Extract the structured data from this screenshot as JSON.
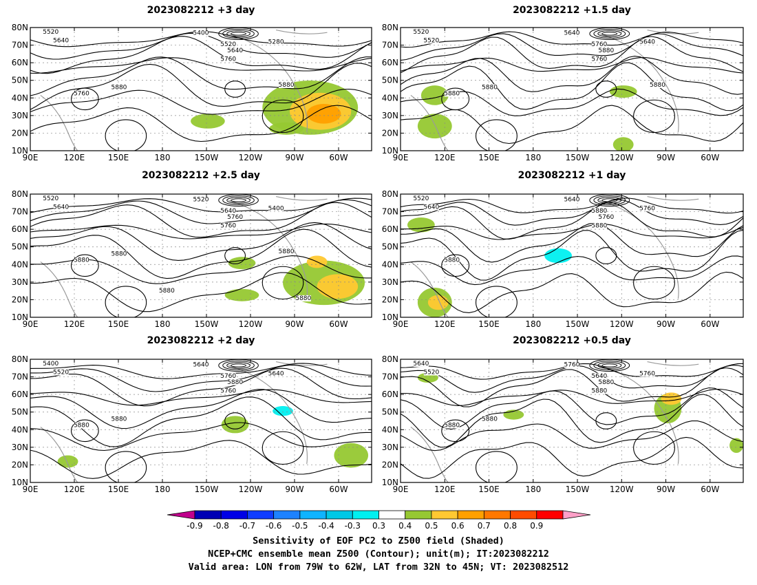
{
  "panels": [
    {
      "title": "2023082212 +3 day",
      "contour_labels": [
        "5520",
        "5640",
        "5400",
        "5280",
        "5520",
        "5640",
        "5760",
        "5760",
        "5880",
        "5880"
      ]
    },
    {
      "title": "2023082212 +1.5 day",
      "contour_labels": [
        "5520",
        "5520",
        "5640",
        "5640",
        "5760",
        "5880",
        "5760",
        "5880",
        "5880",
        "5880"
      ]
    },
    {
      "title": "2023082212 +2.5 day",
      "contour_labels": [
        "5520",
        "5640",
        "5520",
        "5400",
        "5640",
        "5760",
        "5760",
        "5880",
        "5880",
        "5880",
        "5880",
        "5880"
      ]
    },
    {
      "title": "2023082212 +1 day",
      "contour_labels": [
        "5520",
        "5640",
        "5640",
        "5760",
        "5880",
        "5760",
        "5880",
        "5880"
      ]
    },
    {
      "title": "2023082212 +2 day",
      "contour_labels": [
        "5400",
        "5520",
        "5640",
        "5640",
        "5760",
        "5880",
        "5760",
        "5880",
        "5880"
      ]
    },
    {
      "title": "2023082212 +0.5 day",
      "contour_labels": [
        "5640",
        "5520",
        "5760",
        "5760",
        "5640",
        "5880",
        "5880",
        "5880",
        "5880"
      ]
    }
  ],
  "axes": {
    "lat_labels": [
      "80N",
      "70N",
      "60N",
      "50N",
      "40N",
      "30N",
      "20N",
      "10N"
    ],
    "lon_labels": [
      "90E",
      "120E",
      "150E",
      "180",
      "150W",
      "120W",
      "90W",
      "60W"
    ]
  },
  "colorbar": {
    "labels": [
      "-0.9",
      "-0.8",
      "-0.7",
      "-0.6",
      "-0.5",
      "-0.4",
      "-0.3",
      "0.3",
      "0.4",
      "0.5",
      "0.6",
      "0.7",
      "0.8",
      "0.9"
    ],
    "colors": [
      "#c0008c",
      "#0000b4",
      "#0000e6",
      "#0f3cff",
      "#1e82ff",
      "#0fb4ff",
      "#00c8e6",
      "#00f0f0",
      "#ffffff",
      "#96c832",
      "#ffc832",
      "#ffa000",
      "#ff7800",
      "#ff4b00",
      "#ff0000",
      "#ffa0c8"
    ]
  },
  "caption": {
    "line1": "Sensitivity of EOF PC2 to Z500 field (Shaded)",
    "line2": "NCEP+CMC ensemble mean Z500 (Contour); unit(m); IT:2023082212",
    "line3": "Valid area: LON from 79W to 62W, LAT from 32N to 45N; VT: 2023082512"
  }
}
